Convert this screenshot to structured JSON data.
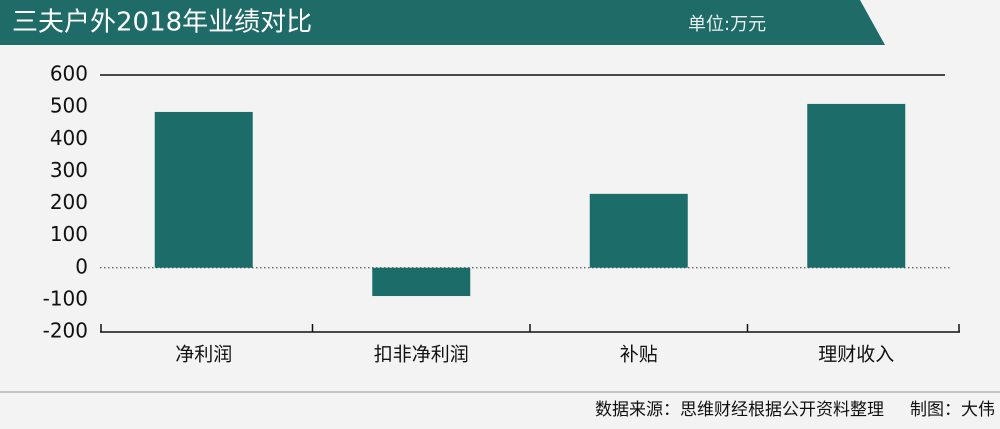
{
  "chart_data": {
    "type": "bar",
    "title": "三夫户外2018年业绩对比",
    "unit": "单位:万元",
    "categories": [
      "净利润",
      "扣非净利润",
      "补贴",
      "理财收入"
    ],
    "values": [
      485,
      -88,
      230,
      510
    ],
    "color": "#1c6d69",
    "ylim": [
      -200,
      600
    ],
    "yticks": [
      -200,
      -100,
      0,
      100,
      200,
      300,
      400,
      500,
      600
    ],
    "source": "数据来源：思维财经根据公开资料整理",
    "credit": "制图：大伟"
  }
}
